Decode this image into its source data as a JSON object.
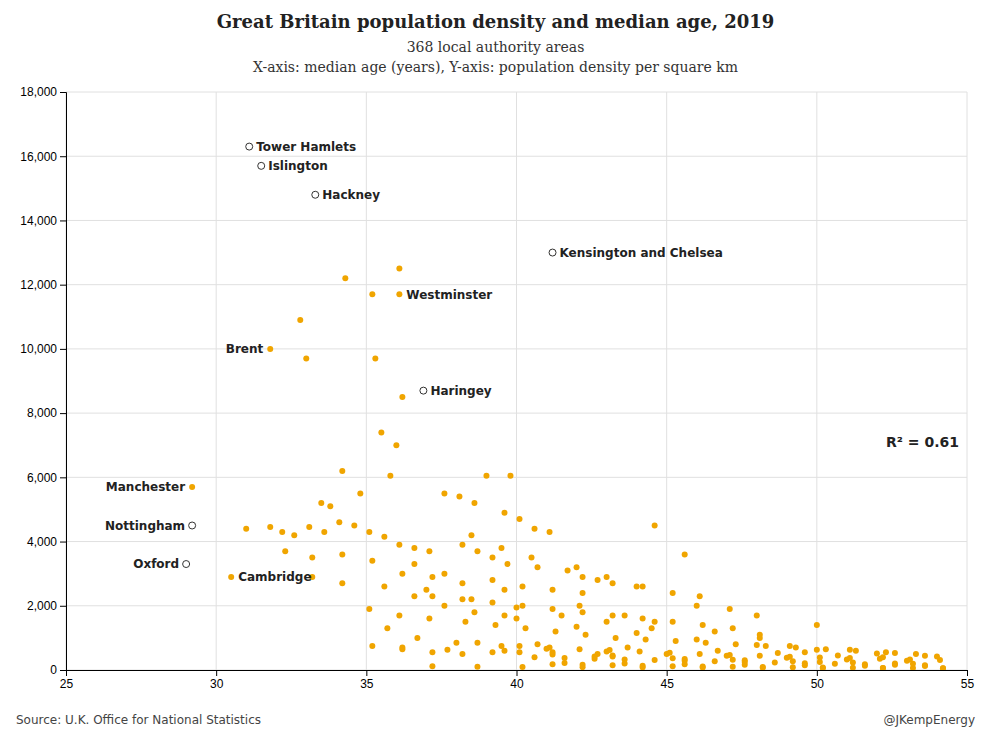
{
  "chart_data": {
    "type": "scatter",
    "title": "Great Britain population density and median age, 2019",
    "subtitle": [
      "368 local authority areas",
      "X-axis: median age (years), Y-axis: population density per square km"
    ],
    "annotation": "R² = 0.61",
    "source": "Source: U.K. Office for National Statistics",
    "credit": "@JKempEnergy",
    "color": "#f0a500",
    "grid": true,
    "xlim": [
      25,
      55
    ],
    "ylim": [
      0,
      18000
    ],
    "xticks": [
      25,
      30,
      35,
      40,
      45,
      50,
      55
    ],
    "yticks": [
      0,
      {
        "value": 2000,
        "label": "2,000"
      },
      {
        "value": 4000,
        "label": "4,000"
      },
      {
        "value": 6000,
        "label": "6,000"
      },
      {
        "value": 8000,
        "label": "8,000"
      },
      {
        "value": 10000,
        "label": "10,000"
      },
      {
        "value": 12000,
        "label": "12,000"
      },
      {
        "value": 14000,
        "label": "14,000"
      },
      {
        "value": 16000,
        "label": "16,000"
      },
      {
        "value": 18000,
        "label": "18,000"
      }
    ],
    "x": [
      31.1,
      31.5,
      33.3,
      41.2,
      36.1,
      35.2,
      34.3,
      36.1,
      32.8,
      31.8,
      33.0,
      35.3,
      36.9,
      36.2,
      35.5,
      36.0,
      34.2,
      35.8,
      39.0,
      39.8,
      34.8,
      33.5,
      33.8,
      29.2,
      29.2,
      29.0,
      30.5,
      31.0,
      31.8,
      32.2,
      32.6,
      33.1,
      33.6,
      34.1,
      34.6,
      35.1,
      35.6,
      36.1,
      36.6,
      37.1,
      32.3,
      33.2,
      34.2,
      35.2,
      36.2,
      37.2,
      38.2,
      39.2,
      40.2,
      41.2,
      42.2,
      37.6,
      38.1,
      38.6,
      39.6,
      40.1,
      40.6,
      41.1,
      38.2,
      38.7,
      39.2,
      39.7,
      40.7,
      41.7,
      42.2,
      42.7,
      43.2,
      44.2,
      45.2,
      37.2,
      38.2,
      39.2,
      40.2,
      41.2,
      42.2,
      43.2,
      44.2,
      45.2,
      46.2,
      47.2,
      38.3,
      39.3,
      40.3,
      41.3,
      42.3,
      43.3,
      44.3,
      45.3,
      46.3,
      47.3,
      48.3,
      49.3,
      50.3,
      51.3,
      52.3,
      53.3,
      40.1,
      41.1,
      42.1,
      43.1,
      44.1,
      45.1,
      46.1,
      47.1,
      48.1,
      49.1,
      50.1,
      51.1,
      52.1,
      53.1,
      54.1,
      40.6,
      41.6,
      42.6,
      43.6,
      44.6,
      45.6,
      46.6,
      47.6,
      48.6,
      49.6,
      50.6,
      51.6,
      52.6,
      53.6,
      41.2,
      42.2,
      43.2,
      44.2,
      45.2,
      46.2,
      47.2,
      48.2,
      49.2,
      50.2,
      51.2,
      52.2,
      53.2,
      54.2,
      35.1,
      36.1,
      37.1,
      35.6,
      36.6,
      37.6,
      38.6,
      39.6,
      41.2,
      42.7,
      43.2,
      44.6,
      45.6,
      46.1,
      47.1,
      48.1,
      49.6,
      36.2,
      37.2,
      38.2,
      33.2,
      34.2,
      35.7,
      36.7,
      38.7,
      40.7,
      43.7,
      46.7,
      48.7,
      50.7,
      52.2,
      39.6,
      40.1,
      42.6,
      45.6,
      47.6,
      50.1,
      52.6,
      37.2,
      38.7,
      40.2,
      42.2,
      44.2,
      46.2,
      48.2,
      50.2,
      52.2,
      54.2,
      41.6,
      43.6,
      45.6,
      47.6,
      49.6,
      51.6,
      53.6,
      36.6,
      37.6,
      39.6,
      42.1,
      43.6,
      44.6,
      46.6,
      48.1,
      49.1,
      51.1,
      52.6,
      53.6,
      35.2,
      36.2,
      37.7,
      39.2,
      41.2,
      43.2,
      45.2,
      47.2,
      49.2,
      51.2,
      53.2,
      38.5,
      39.5,
      40.5,
      42.0,
      43.0,
      44.0,
      46.0,
      48.0,
      50.0,
      40.0,
      42.0,
      44.0,
      46.0,
      48.0,
      50.0,
      52.0,
      54.0,
      37.0,
      38.5,
      40.0,
      41.5,
      43.0,
      44.5,
      38.0,
      39.5,
      41.0,
      43.0,
      45.0,
      47.0,
      49.0,
      51.0,
      53.0
    ],
    "values": [
      16300,
      15700,
      14800,
      13000,
      12500,
      11700,
      12200,
      11700,
      10900,
      10000,
      9700,
      9700,
      8700,
      8500,
      7400,
      7000,
      6200,
      6050,
      6050,
      6050,
      5500,
      5200,
      5100,
      5700,
      4500,
      3300,
      2900,
      4400,
      4450,
      4300,
      4200,
      4450,
      4300,
      4600,
      4500,
      4300,
      4150,
      3900,
      3800,
      3700,
      3700,
      3500,
      3600,
      3400,
      3000,
      2900,
      2700,
      2800,
      2600,
      2500,
      2400,
      5500,
      5400,
      5200,
      4900,
      4700,
      4400,
      4300,
      3900,
      3700,
      3500,
      3300,
      3200,
      3100,
      2900,
      2800,
      2700,
      2600,
      2400,
      2300,
      2200,
      2100,
      2000,
      1900,
      1800,
      1700,
      1600,
      1500,
      1400,
      1300,
      1500,
      1400,
      1300,
      1200,
      1100,
      1000,
      950,
      900,
      850,
      800,
      750,
      700,
      650,
      600,
      550,
      500,
      750,
      700,
      650,
      620,
      580,
      540,
      500,
      470,
      440,
      410,
      390,
      370,
      350,
      330,
      310,
      400,
      370,
      350,
      330,
      310,
      290,
      270,
      250,
      230,
      210,
      195,
      180,
      165,
      150,
      180,
      165,
      150,
      135,
      120,
      110,
      100,
      90,
      82,
      75,
      70,
      65,
      60,
      55,
      1900,
      1700,
      1600,
      2600,
      2300,
      2000,
      1800,
      1700,
      550,
      500,
      450,
      4500,
      3600,
      2300,
      1900,
      1100,
      550,
      650,
      550,
      500,
      2900,
      2700,
      1300,
      1000,
      850,
      800,
      700,
      600,
      530,
      450,
      400,
      600,
      550,
      420,
      340,
      300,
      250,
      200,
      120,
      105,
      95,
      88,
      82,
      76,
      70,
      65,
      60,
      55,
      220,
      200,
      180,
      160,
      145,
      135,
      125,
      3300,
      3000,
      2500,
      2000,
      1700,
      1500,
      1200,
      1000,
      750,
      630,
      530,
      440,
      750,
      700,
      630,
      550,
      480,
      420,
      365,
      320,
      275,
      235,
      195,
      4200,
      3800,
      3500,
      3200,
      2900,
      2600,
      2000,
      1700,
      1400,
      1600,
      1350,
      1150,
      950,
      780,
      630,
      510,
      420,
      2500,
      2200,
      1950,
      1700,
      1500,
      1300,
      850,
      750,
      660,
      580,
      500,
      440,
      380,
      330,
      290
    ],
    "annotations": [
      {
        "text": "Tower Hamlets",
        "x": 31.1,
        "y": 16300,
        "color": "#ffffff"
      },
      {
        "text": "Islington",
        "x": 31.5,
        "y": 15700,
        "color": "#ffffff"
      },
      {
        "text": "Hackney",
        "x": 33.3,
        "y": 14800,
        "color": "#ffffff"
      },
      {
        "text": "Kensington and Chelsea",
        "x": 41.2,
        "y": 13000,
        "color": "#ffffff"
      },
      {
        "text": "Westminster",
        "x": 36.1,
        "y": 11700
      },
      {
        "text": "Brent",
        "x": 31.8,
        "y": 10000
      },
      {
        "text": "Haringey",
        "x": 36.9,
        "y": 8700,
        "color": "#ffffff"
      },
      {
        "text": "Manchester",
        "x": 29.2,
        "y": 5700
      },
      {
        "text": "Nottingham",
        "x": 29.2,
        "y": 4500,
        "color": "#ffffff"
      },
      {
        "text": "Oxford",
        "x": 29.0,
        "y": 3300,
        "color": "#ffffff"
      },
      {
        "text": "Cambridge",
        "x": 30.5,
        "y": 2900
      }
    ]
  }
}
